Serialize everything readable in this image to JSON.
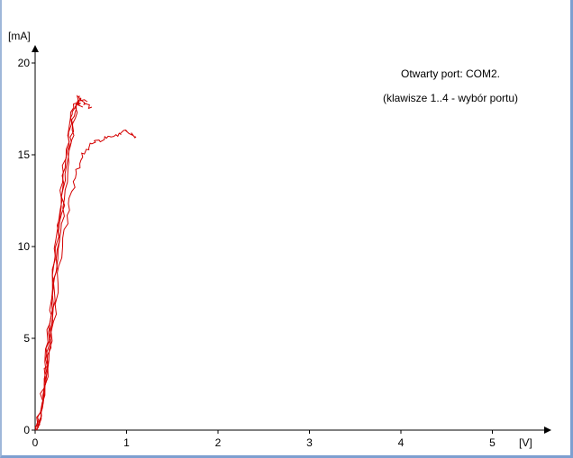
{
  "status": {
    "line1": "Otwarty port: COM2.",
    "line2": "(klawisze 1..4 - wybór portu)"
  },
  "colors": {
    "trace": "#d40000",
    "axis": "#000000",
    "background": "#ffffff"
  },
  "chart_data": {
    "type": "line",
    "xlabel": "[V]",
    "ylabel": "[mA]",
    "xlim": [
      0,
      5.6
    ],
    "ylim": [
      0,
      21
    ],
    "x_ticks": [
      0,
      1,
      2,
      3,
      4,
      5
    ],
    "y_ticks": [
      0,
      5,
      10,
      15,
      20
    ],
    "grid": false,
    "series": [
      {
        "values_xy": [
          [
            0.0,
            0.0
          ],
          [
            0.05,
            0.3
          ],
          [
            0.08,
            1.2
          ],
          [
            0.1,
            2.5
          ],
          [
            0.13,
            4.0
          ],
          [
            0.16,
            5.8
          ],
          [
            0.19,
            7.5
          ],
          [
            0.22,
            9.5
          ],
          [
            0.26,
            11.5
          ],
          [
            0.3,
            13.5
          ],
          [
            0.34,
            15.3
          ],
          [
            0.38,
            16.8
          ],
          [
            0.42,
            17.7
          ],
          [
            0.46,
            18.2
          ],
          [
            0.5,
            18.0
          ],
          [
            0.56,
            17.8
          ],
          [
            0.62,
            17.6
          ]
        ]
      },
      {
        "values_xy": [
          [
            0.0,
            0.1
          ],
          [
            0.06,
            1.0
          ],
          [
            0.1,
            2.8
          ],
          [
            0.14,
            4.8
          ],
          [
            0.18,
            7.0
          ],
          [
            0.22,
            9.3
          ],
          [
            0.27,
            11.6
          ],
          [
            0.31,
            13.5
          ],
          [
            0.35,
            15.2
          ],
          [
            0.4,
            16.7
          ],
          [
            0.44,
            17.6
          ],
          [
            0.5,
            18.1
          ],
          [
            0.56,
            17.9
          ]
        ]
      },
      {
        "values_xy": [
          [
            0.02,
            0.0
          ],
          [
            0.08,
            1.5
          ],
          [
            0.13,
            3.5
          ],
          [
            0.17,
            5.5
          ],
          [
            0.21,
            7.6
          ],
          [
            0.25,
            9.8
          ],
          [
            0.29,
            11.8
          ],
          [
            0.33,
            13.6
          ],
          [
            0.37,
            15.3
          ],
          [
            0.41,
            16.6
          ],
          [
            0.45,
            17.5
          ],
          [
            0.48,
            18.0
          ]
        ]
      },
      {
        "values_xy": [
          [
            0.03,
            0.1
          ],
          [
            0.1,
            1.8
          ],
          [
            0.15,
            3.8
          ],
          [
            0.2,
            5.9
          ],
          [
            0.25,
            8.0
          ],
          [
            0.3,
            10.0
          ],
          [
            0.35,
            11.7
          ],
          [
            0.4,
            13.0
          ],
          [
            0.45,
            14.0
          ],
          [
            0.5,
            14.7
          ],
          [
            0.56,
            15.3
          ],
          [
            0.62,
            15.6
          ],
          [
            0.7,
            15.8
          ],
          [
            0.78,
            15.9
          ],
          [
            0.86,
            16.0
          ],
          [
            0.94,
            16.1
          ],
          [
            1.0,
            16.3
          ],
          [
            1.06,
            16.1
          ],
          [
            1.09,
            16.0
          ]
        ]
      },
      {
        "values_xy": [
          [
            0.01,
            0.2
          ],
          [
            0.07,
            1.1
          ],
          [
            0.12,
            2.9
          ],
          [
            0.16,
            4.7
          ],
          [
            0.2,
            6.8
          ],
          [
            0.24,
            8.8
          ],
          [
            0.28,
            10.8
          ],
          [
            0.32,
            12.6
          ],
          [
            0.36,
            14.3
          ],
          [
            0.4,
            15.8
          ],
          [
            0.44,
            17.0
          ],
          [
            0.47,
            17.8
          ],
          [
            0.52,
            17.6
          ]
        ]
      }
    ]
  }
}
